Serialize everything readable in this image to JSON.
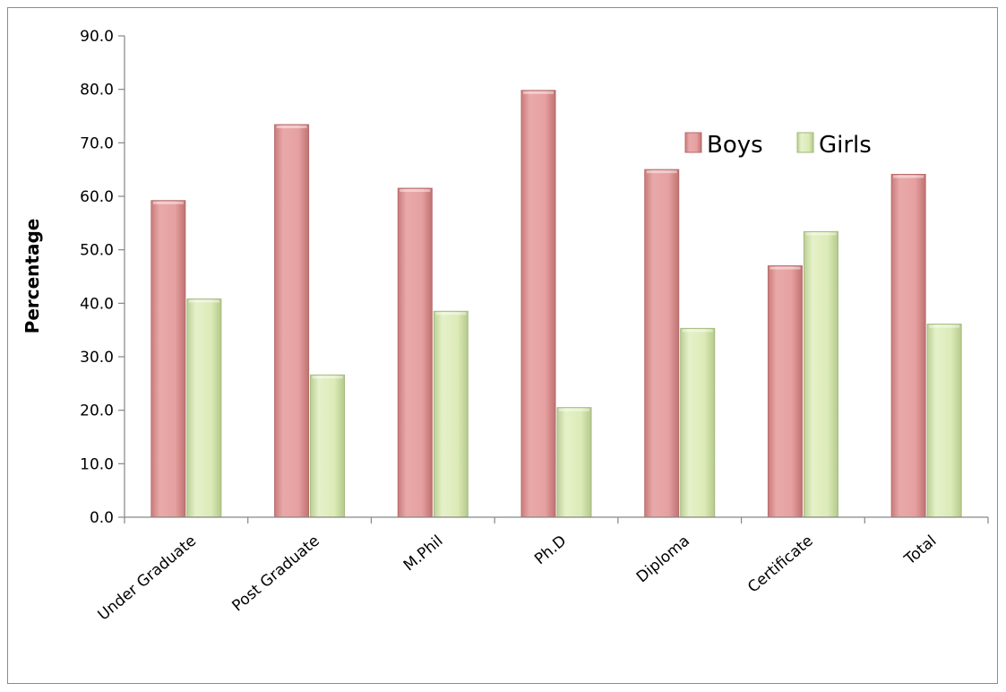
{
  "chart_data": {
    "type": "bar",
    "title": "",
    "xlabel": "",
    "ylabel": "Percentage",
    "ylim": [
      0,
      90
    ],
    "ytick_step": 10,
    "ytick_labels": [
      "0.0",
      "10.0",
      "20.0",
      "30.0",
      "40.0",
      "50.0",
      "60.0",
      "70.0",
      "80.0",
      "90.0"
    ],
    "grid": false,
    "legend_position": "upper-right",
    "categories": [
      "Under Graduate",
      "Post Graduate",
      "M.Phil",
      "Ph.D",
      "Diploma",
      "Certificate",
      "Total"
    ],
    "series": [
      {
        "name": "Boys",
        "color": "#e6a0a0",
        "values": [
          59.2,
          73.4,
          61.5,
          79.8,
          65.0,
          47.0,
          64.1
        ]
      },
      {
        "name": "Girls",
        "color": "#dcebb8",
        "values": [
          40.8,
          26.6,
          38.5,
          20.5,
          35.3,
          53.4,
          36.1
        ]
      }
    ]
  }
}
